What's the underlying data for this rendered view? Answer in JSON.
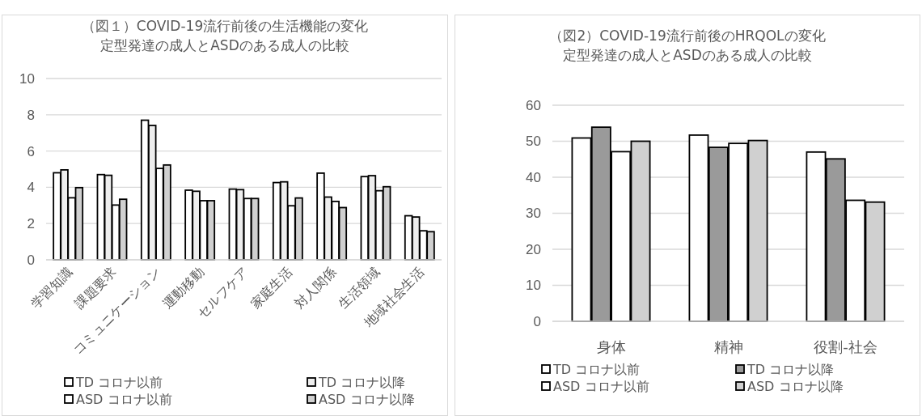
{
  "chart_data": [
    {
      "type": "bar",
      "title": "（図１）COVID-19流行前後の生活機能の変化",
      "subtitle": "定型発達の成人とASDのある成人の比較",
      "categories": [
        "学習知識",
        "課題要求",
        "コミュニケーション",
        "運動移動",
        "セルフケア",
        "家庭生活",
        "対人関係",
        "生活領域",
        "地域社会生活"
      ],
      "series": [
        {
          "name": "TD コロナ以前",
          "color": "#ffffff",
          "values": [
            4.8,
            4.7,
            7.7,
            3.84,
            3.9,
            4.26,
            4.78,
            4.59,
            2.43
          ]
        },
        {
          "name": "TD コロナ以降",
          "color": "#eeeeee",
          "values": [
            4.96,
            4.66,
            7.41,
            3.78,
            3.87,
            4.3,
            3.46,
            4.64,
            2.36
          ]
        },
        {
          "name": "ASD コロナ以前",
          "color": "#ffffff",
          "values": [
            3.42,
            3.02,
            5.04,
            3.26,
            3.38,
            2.98,
            3.22,
            3.81,
            1.6
          ]
        },
        {
          "name": "ASD コロナ以降",
          "color": "#d0d0d0",
          "values": [
            3.98,
            3.34,
            5.23,
            3.26,
            3.38,
            3.41,
            2.88,
            4.03,
            1.55
          ]
        }
      ],
      "ylim": [
        0,
        10
      ],
      "yticks": [
        0,
        2,
        4,
        6,
        8,
        10
      ],
      "grid": "y",
      "legend": "bottom"
    },
    {
      "type": "bar",
      "title": "（図2）COVID-19流行前後のHRQOLの変化",
      "subtitle": "定型発達の成人とASDのある成人の比較",
      "categories": [
        "身体",
        "精神",
        "役割-社会"
      ],
      "series": [
        {
          "name": "TD コロナ以前",
          "color": "#ffffff",
          "values": [
            50.9,
            51.7,
            47.0
          ]
        },
        {
          "name": "TD コロナ以降",
          "color": "#9a9a9a",
          "values": [
            53.9,
            48.3,
            45.1
          ]
        },
        {
          "name": "ASD コロナ以前",
          "color": "#ffffff",
          "values": [
            47.1,
            49.4,
            33.6
          ]
        },
        {
          "name": "ASD コロナ以降",
          "color": "#d0d0d0",
          "values": [
            50.0,
            50.2,
            33.1
          ]
        }
      ],
      "ylim": [
        0,
        60
      ],
      "yticks": [
        0,
        10,
        20,
        30,
        40,
        50,
        60
      ],
      "grid": "y",
      "legend": "bottom"
    }
  ]
}
